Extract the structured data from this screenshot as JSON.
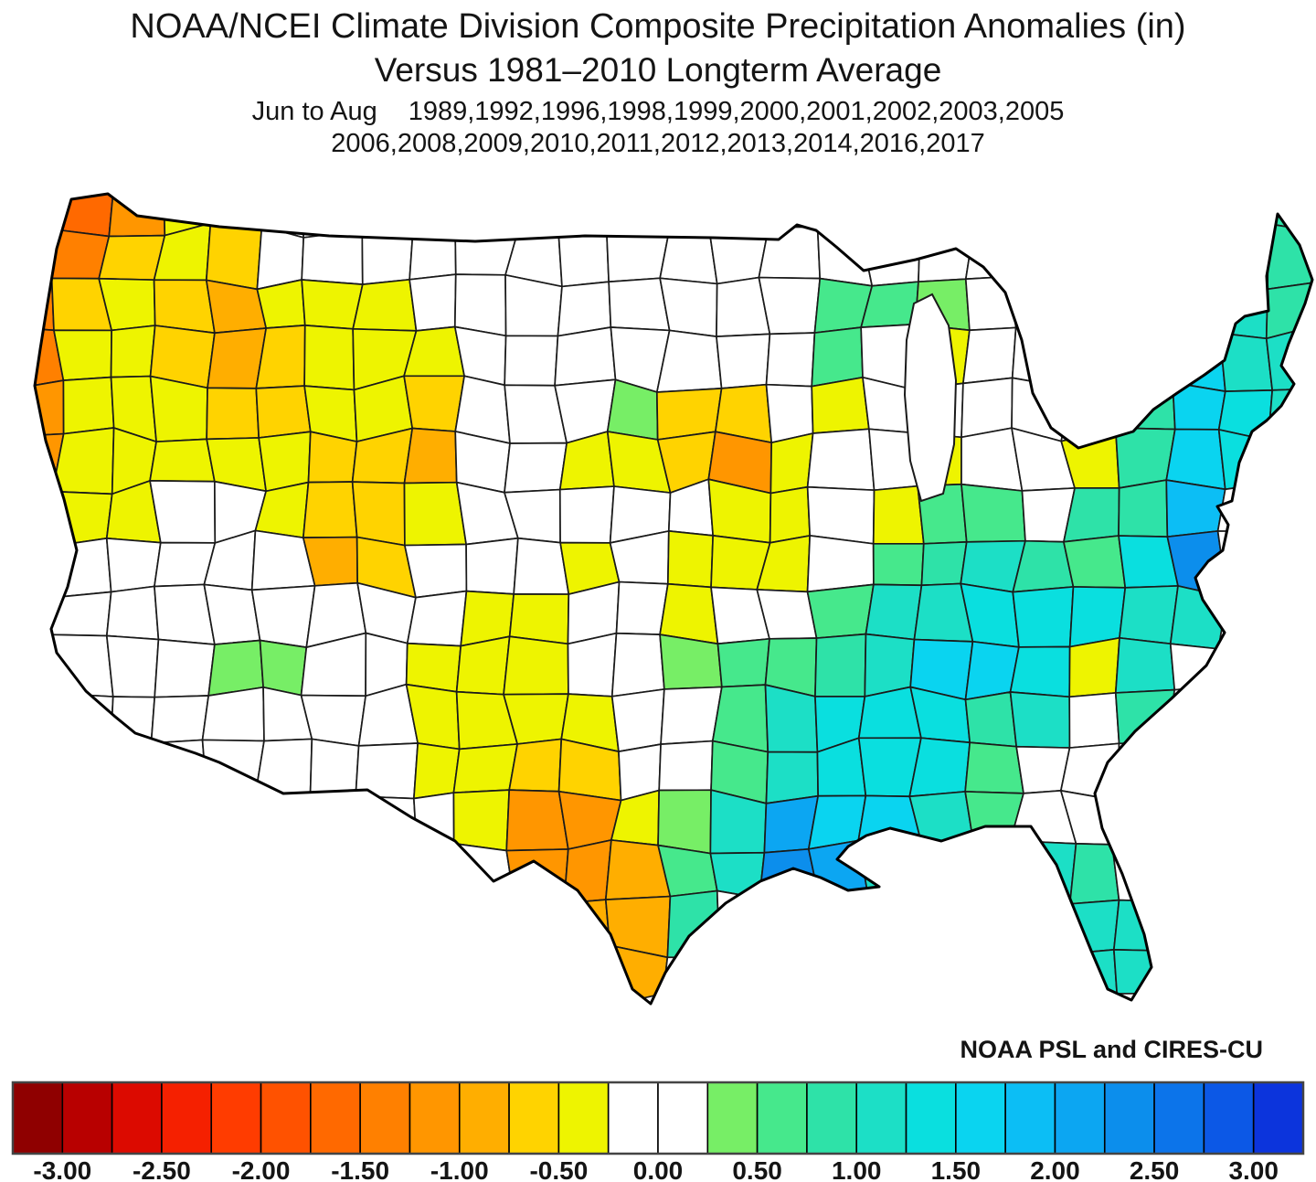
{
  "title": {
    "line1": "NOAA/NCEI Climate Division Composite Precipitation Anomalies (in)",
    "line2": "Versus 1981–2010 Longterm Average",
    "season": "Jun to Aug",
    "years_line1": "1989,1992,1996,1998,1999,2000,2001,2002,2003,2005",
    "years_line2": "2006,2008,2009,2010,2011,2012,2013,2014,2016,2017"
  },
  "attribution": "NOAA PSL and CIRES-CU",
  "chart_data": {
    "type": "heatmap",
    "subtype": "choropleth-us-climate-divisions",
    "title": "NOAA/NCEI Climate Division Composite Precipitation Anomalies (in)",
    "baseline": "Versus 1981–2010 Longterm Average",
    "season": "Jun to Aug",
    "years": [
      1989,
      1992,
      1996,
      1998,
      1999,
      2000,
      2001,
      2002,
      2003,
      2005,
      2006,
      2008,
      2009,
      2010,
      2011,
      2012,
      2013,
      2014,
      2016,
      2017
    ],
    "units": "inches",
    "legend_position": "bottom",
    "colorbar": {
      "min": -3.25,
      "max": 3.25,
      "segment_step": 0.25,
      "tick_labels": [
        "-3.00",
        "-2.50",
        "-2.00",
        "-1.50",
        "-1.00",
        "-0.50",
        "0.00",
        "0.50",
        "1.00",
        "1.50",
        "2.00",
        "2.50",
        "3.00"
      ],
      "negative_colors": [
        "#8F0000",
        "#B80000",
        "#DC0A00",
        "#F52000",
        "#FF3C00",
        "#FF5200",
        "#FF6900",
        "#FF8000",
        "#FF9600",
        "#FFAE00",
        "#FFD300",
        "#EEF400"
      ],
      "neutral_color": "#FFFFFF",
      "neutral_range": [
        -0.25,
        0.25
      ],
      "positive_colors": [
        "#77EE66",
        "#46E88C",
        "#2EE2A8",
        "#1CDFC6",
        "#0ADFDF",
        "#0AD4F0",
        "#0CBEF5",
        "#0CA6F2",
        "#0C8EEC",
        "#0C74EA",
        "#0C58E6",
        "#0C34DC"
      ]
    },
    "anomaly_grid": {
      "description": "Approximate precipitation anomaly (in) read from the map on a 26-col x 16-row grid over the contiguous US (west-to-east, north-to-south); values within +/-0.25 render white.",
      "cols": 26,
      "rows": 16,
      "values": [
        [
          0,
          -1.6,
          -1.1,
          -0.5,
          -0.5,
          0,
          0,
          0,
          0,
          0,
          0,
          0,
          0,
          0,
          0,
          0,
          0,
          0,
          0,
          0,
          0,
          0,
          0,
          0,
          0.9,
          0.9
        ],
        [
          -1.7,
          -1.3,
          -0.6,
          -0.5,
          -0.6,
          0,
          0,
          0,
          0,
          0,
          0,
          0,
          0,
          0,
          0,
          0,
          0,
          0,
          0,
          0,
          0,
          0,
          0,
          0,
          0.9,
          0.85
        ],
        [
          -1.4,
          -0.7,
          -0.5,
          -0.6,
          -0.9,
          -0.5,
          -0.5,
          -0.5,
          0,
          0,
          0,
          0,
          0,
          0,
          0,
          0,
          0.5,
          0.5,
          0.4,
          0,
          0,
          0,
          0,
          1.2,
          1.1,
          0.9
        ],
        [
          -1.3,
          -0.5,
          -0.5,
          -0.6,
          -0.9,
          -0.6,
          -0.5,
          -0.5,
          -0.5,
          0,
          0,
          0,
          0,
          0,
          0,
          0,
          0.5,
          0,
          -0.4,
          0,
          0,
          0,
          1.5,
          1.5,
          1.2,
          1.1
        ],
        [
          -1.2,
          -0.5,
          -0.4,
          -0.5,
          -0.6,
          -0.6,
          -0.5,
          -0.5,
          -0.6,
          0,
          0,
          0,
          0.4,
          -0.75,
          -0.75,
          0,
          -0.5,
          0,
          0,
          0,
          0,
          0,
          0.9,
          1.5,
          1.3,
          1.2
        ],
        [
          -1.2,
          -0.5,
          -0.4,
          -0.5,
          -0.5,
          -0.5,
          -0.6,
          -0.6,
          -0.8,
          0,
          0,
          -0.5,
          -0.5,
          -0.6,
          -1.1,
          -0.5,
          0,
          0,
          -0.4,
          0,
          0,
          -0.4,
          0.9,
          1.6,
          1.3,
          0
        ],
        [
          -1.1,
          -0.5,
          -0.4,
          0,
          0,
          -0.5,
          -0.6,
          -0.6,
          -0.5,
          0,
          0,
          0,
          0,
          0,
          -0.5,
          -0.5,
          0,
          -0.4,
          0.5,
          0.5,
          0,
          0.8,
          0.9,
          1.8,
          0,
          0
        ],
        [
          -0.9,
          0,
          0,
          0,
          0,
          0,
          -0.8,
          -0.6,
          0,
          0,
          0,
          -0.4,
          0,
          -0.5,
          -0.5,
          -0.4,
          0,
          0.5,
          0.8,
          1.0,
          0.8,
          0.5,
          1.3,
          2.4,
          0,
          0
        ],
        [
          0,
          0,
          0,
          0,
          0,
          0,
          0,
          0,
          0,
          -0.5,
          -0.5,
          0,
          0,
          -0.4,
          0,
          0,
          0.5,
          1.0,
          1.2,
          1.4,
          1.3,
          1.3,
          1.2,
          1.2,
          0,
          0
        ],
        [
          0,
          0,
          0,
          0,
          0.45,
          0.4,
          0,
          0,
          -0.5,
          -0.5,
          -0.5,
          0,
          0,
          0.4,
          0.5,
          0.6,
          0.8,
          1.2,
          1.5,
          1.5,
          1.4,
          -0.5,
          1.0,
          0,
          0,
          0
        ],
        [
          0,
          0,
          0,
          0,
          0,
          0,
          0,
          0,
          -0.5,
          -0.5,
          -0.5,
          -0.5,
          0,
          0,
          0.6,
          1.0,
          1.3,
          1.4,
          1.4,
          0.9,
          1.0,
          0,
          0.9,
          0,
          0,
          0
        ],
        [
          0,
          0,
          0,
          0,
          0,
          0,
          0,
          0,
          -0.5,
          -0.5,
          -0.6,
          -0.6,
          0,
          0,
          0.7,
          1.2,
          1.4,
          1.4,
          1.3,
          0.5,
          0,
          0,
          0,
          0,
          0,
          0
        ],
        [
          0,
          0,
          0,
          0,
          0,
          0,
          0,
          0,
          0,
          -0.5,
          -1.2,
          -1.2,
          -0.5,
          0.4,
          1.0,
          2.0,
          1.6,
          1.5,
          1.2,
          0.5,
          0,
          0,
          0,
          0,
          0,
          0
        ],
        [
          0,
          0,
          0,
          0,
          0,
          0,
          0,
          0,
          0,
          0,
          -1.2,
          -1.2,
          -1.0,
          0.7,
          1.0,
          2.4,
          2.2,
          1.0,
          0.9,
          0.9,
          1.0,
          0.9,
          0,
          0,
          0,
          0
        ],
        [
          0,
          0,
          0,
          0,
          0,
          0,
          0,
          0,
          0,
          0,
          0,
          -1.0,
          -1.0,
          0.8,
          0,
          0,
          0,
          0,
          0,
          0,
          1.0,
          1.0,
          1.2,
          0,
          0,
          0
        ],
        [
          0,
          0,
          0,
          0,
          0,
          0,
          0,
          0,
          0,
          0,
          0,
          0,
          -1.0,
          0,
          0,
          0,
          0,
          0,
          0,
          0,
          0,
          1.1,
          1.2,
          0,
          0,
          0
        ]
      ]
    }
  }
}
